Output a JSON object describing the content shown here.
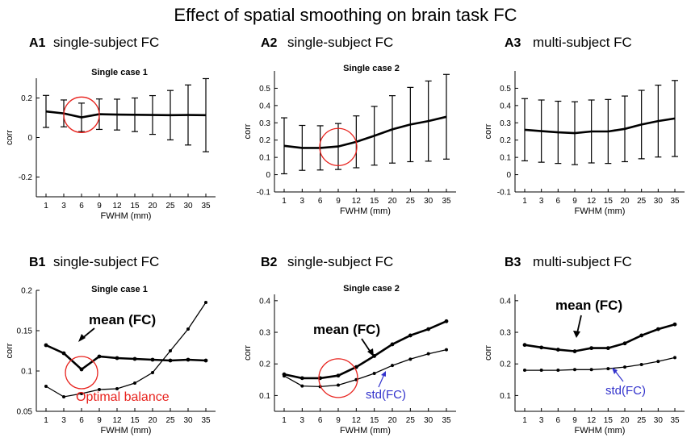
{
  "title": "Effect of spatial smoothing on brain task FC",
  "panels": {
    "A1": {
      "label": "A1",
      "subtitle": "single-subject FC",
      "case_label": "Single case 1"
    },
    "A2": {
      "label": "A2",
      "subtitle": "single-subject FC",
      "case_label": "Single case 2"
    },
    "A3": {
      "label": "A3",
      "subtitle": "multi-subject FC",
      "case_label": ""
    },
    "B1": {
      "label": "B1",
      "subtitle": "single-subject FC",
      "case_label": "Single case 1",
      "mean_label": "mean (FC)",
      "annotation": "Optimal balance"
    },
    "B2": {
      "label": "B2",
      "subtitle": "single-subject FC",
      "case_label": "Single case 2",
      "mean_label": "mean (FC)",
      "std_label": "std(FC)"
    },
    "B3": {
      "label": "B3",
      "subtitle": "multi-subject FC",
      "case_label": "",
      "mean_label": "mean (FC)",
      "std_label": "std(FC)"
    }
  },
  "colors": {
    "line": "#000000",
    "highlight": "#e8231e",
    "std_text": "#3333cc"
  },
  "chart_data": [
    {
      "id": "A1",
      "type": "line",
      "title": "Single case 1",
      "xlabel": "FWHM (mm)",
      "ylabel": "corr",
      "categories": [
        "1",
        "3",
        "6",
        "9",
        "12",
        "15",
        "20",
        "25",
        "30",
        "35"
      ],
      "ylim": [
        -0.3,
        0.3
      ],
      "yticks": [
        -0.2,
        0,
        0.2
      ],
      "ytick_labels": [
        "-0.2",
        "0",
        "0.2"
      ],
      "series": [
        {
          "name": "mean (FC)",
          "values": [
            0.132,
            0.122,
            0.102,
            0.118,
            0.116,
            0.115,
            0.114,
            0.113,
            0.114,
            0.113
          ],
          "std": [
            0.081,
            0.068,
            0.072,
            0.077,
            0.078,
            0.085,
            0.098,
            0.125,
            0.152,
            0.185
          ]
        }
      ]
    },
    {
      "id": "A2",
      "type": "line",
      "title": "Single case 2",
      "xlabel": "FWHM (mm)",
      "ylabel": "corr",
      "categories": [
        "1",
        "3",
        "6",
        "9",
        "12",
        "15",
        "20",
        "25",
        "30",
        "35"
      ],
      "ylim": [
        -0.1,
        0.6
      ],
      "yticks": [
        -0.1,
        0,
        0.1,
        0.2,
        0.3,
        0.4,
        0.5
      ],
      "ytick_labels": [
        "-0.1",
        "0",
        "0.1",
        "0.2",
        "0.3",
        "0.4",
        "0.5"
      ],
      "series": [
        {
          "name": "mean (FC)",
          "values": [
            0.167,
            0.155,
            0.155,
            0.163,
            0.19,
            0.225,
            0.262,
            0.29,
            0.31,
            0.335
          ],
          "std": [
            0.162,
            0.13,
            0.128,
            0.133,
            0.15,
            0.17,
            0.195,
            0.215,
            0.232,
            0.245
          ]
        }
      ]
    },
    {
      "id": "A3",
      "type": "line",
      "title": "",
      "xlabel": "FWHM (mm)",
      "ylabel": "corr",
      "categories": [
        "1",
        "3",
        "6",
        "9",
        "12",
        "15",
        "20",
        "25",
        "30",
        "35"
      ],
      "ylim": [
        -0.1,
        0.6
      ],
      "yticks": [
        -0.1,
        0,
        0.1,
        0.2,
        0.3,
        0.4,
        0.5
      ],
      "ytick_labels": [
        "-0.1",
        "0",
        "0.1",
        "0.2",
        "0.3",
        "0.4",
        "0.5"
      ],
      "series": [
        {
          "name": "mean (FC)",
          "values": [
            0.26,
            0.252,
            0.245,
            0.24,
            0.25,
            0.25,
            0.265,
            0.29,
            0.31,
            0.325
          ],
          "std": [
            0.18,
            0.18,
            0.18,
            0.182,
            0.182,
            0.185,
            0.19,
            0.198,
            0.208,
            0.22
          ]
        }
      ]
    },
    {
      "id": "B1",
      "type": "line",
      "title": "Single case 1",
      "xlabel": "FWHM (mm)",
      "ylabel": "corr",
      "categories": [
        "1",
        "3",
        "6",
        "9",
        "12",
        "15",
        "20",
        "25",
        "30",
        "35"
      ],
      "ylim": [
        0.05,
        0.2
      ],
      "yticks": [
        0.05,
        0.1,
        0.15,
        0.2
      ],
      "ytick_labels": [
        "0.05",
        "0.1",
        "0.15",
        "0.2"
      ],
      "series": [
        {
          "name": "mean (FC)",
          "values": [
            0.132,
            0.122,
            0.102,
            0.118,
            0.116,
            0.115,
            0.114,
            0.113,
            0.114,
            0.113
          ]
        },
        {
          "name": "std (FC)",
          "values": [
            0.081,
            0.068,
            0.072,
            0.077,
            0.078,
            0.085,
            0.098,
            0.125,
            0.152,
            0.185
          ]
        }
      ]
    },
    {
      "id": "B2",
      "type": "line",
      "title": "Single case 2",
      "xlabel": "FWHM (mm)",
      "ylabel": "corr",
      "categories": [
        "1",
        "3",
        "6",
        "9",
        "12",
        "15",
        "20",
        "25",
        "30",
        "35"
      ],
      "ylim": [
        0.05,
        0.42
      ],
      "yticks": [
        0.1,
        0.2,
        0.3,
        0.4
      ],
      "ytick_labels": [
        "0.1",
        "0.2",
        "0.3",
        "0.4"
      ],
      "series": [
        {
          "name": "mean (FC)",
          "values": [
            0.167,
            0.155,
            0.155,
            0.163,
            0.19,
            0.225,
            0.262,
            0.29,
            0.31,
            0.335
          ]
        },
        {
          "name": "std (FC)",
          "values": [
            0.162,
            0.13,
            0.128,
            0.133,
            0.15,
            0.17,
            0.195,
            0.215,
            0.232,
            0.245
          ]
        }
      ]
    },
    {
      "id": "B3",
      "type": "line",
      "title": "",
      "xlabel": "FWHM (mm)",
      "ylabel": "corr",
      "categories": [
        "1",
        "3",
        "6",
        "9",
        "12",
        "15",
        "20",
        "25",
        "30",
        "35"
      ],
      "ylim": [
        0.05,
        0.42
      ],
      "yticks": [
        0.1,
        0.2,
        0.3,
        0.4
      ],
      "ytick_labels": [
        "0.1",
        "0.2",
        "0.3",
        "0.4"
      ],
      "series": [
        {
          "name": "mean (FC)",
          "values": [
            0.26,
            0.252,
            0.245,
            0.24,
            0.25,
            0.25,
            0.265,
            0.29,
            0.31,
            0.325
          ]
        },
        {
          "name": "std (FC)",
          "values": [
            0.18,
            0.18,
            0.18,
            0.182,
            0.182,
            0.185,
            0.19,
            0.198,
            0.208,
            0.22
          ]
        }
      ]
    }
  ]
}
